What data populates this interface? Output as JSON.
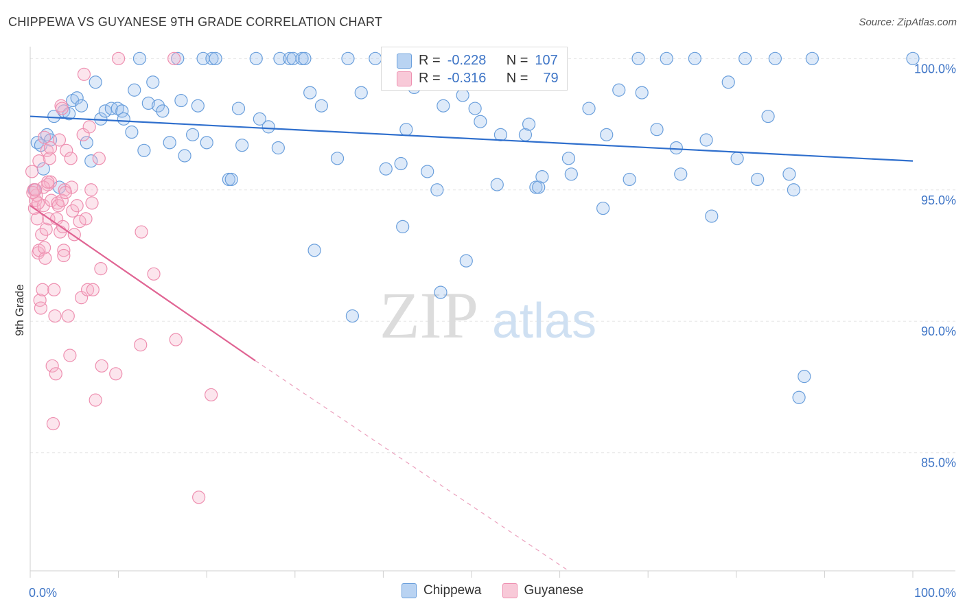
{
  "title": "CHIPPEWA VS GUYANESE 9TH GRADE CORRELATION CHART",
  "source": "Source: ZipAtlas.com",
  "watermark": {
    "zip": "ZIP",
    "atlas": "atlas"
  },
  "legend": {
    "r_label": "R =",
    "n_label": "N =",
    "rows": [
      {
        "name": "Chippewa",
        "r": "-0.228",
        "n": "107",
        "color": "#6a9fdc"
      },
      {
        "name": "Guyanese",
        "r": "-0.316",
        "n": "79",
        "color": "#ee8fb0"
      }
    ]
  },
  "chart_data": {
    "type": "scatter",
    "title": "CHIPPEWA VS GUYANESE 9TH GRADE CORRELATION CHART",
    "xlabel": "",
    "ylabel": "9th Grade",
    "xlim": [
      0,
      100
    ],
    "ylim": [
      80.5,
      100.4
    ],
    "x_tick_labels": [
      "0.0%",
      "100.0%"
    ],
    "y_ticks": [
      85,
      90,
      95,
      100
    ],
    "y_tick_labels": [
      "85.0%",
      "90.0%",
      "95.0%",
      "100.0%"
    ],
    "grid": true,
    "series": [
      {
        "name": "Chippewa",
        "color": "#6a9fdc",
        "trend": {
          "x0": 0,
          "y0": 97.8,
          "x1": 100,
          "y1": 96.1
        },
        "points": [
          [
            0.5,
            95.0
          ],
          [
            0.8,
            96.8
          ],
          [
            1.2,
            96.7
          ],
          [
            1.5,
            95.8
          ],
          [
            1.9,
            97.1
          ],
          [
            2.3,
            96.9
          ],
          [
            2.7,
            97.8
          ],
          [
            3.3,
            95.1
          ],
          [
            3.8,
            98.0
          ],
          [
            4.4,
            97.9
          ],
          [
            4.8,
            98.4
          ],
          [
            5.3,
            98.5
          ],
          [
            5.8,
            98.2
          ],
          [
            6.4,
            96.8
          ],
          [
            6.9,
            96.1
          ],
          [
            7.4,
            99.1
          ],
          [
            8.0,
            97.7
          ],
          [
            8.5,
            98.0
          ],
          [
            9.2,
            98.1
          ],
          [
            9.9,
            98.1
          ],
          [
            10.4,
            98.0
          ],
          [
            10.6,
            97.7
          ],
          [
            11.5,
            97.2
          ],
          [
            11.8,
            98.8
          ],
          [
            12.4,
            100.0
          ],
          [
            12.9,
            96.5
          ],
          [
            13.4,
            98.3
          ],
          [
            13.9,
            99.1
          ],
          [
            14.5,
            98.2
          ],
          [
            15.0,
            98.0
          ],
          [
            15.8,
            96.8
          ],
          [
            16.7,
            100.0
          ],
          [
            17.1,
            98.4
          ],
          [
            17.5,
            96.3
          ],
          [
            18.4,
            97.1
          ],
          [
            19.0,
            98.2
          ],
          [
            19.6,
            100.0
          ],
          [
            20.0,
            96.8
          ],
          [
            20.6,
            100.0
          ],
          [
            21.0,
            100.0
          ],
          [
            22.5,
            95.4
          ],
          [
            22.8,
            95.4
          ],
          [
            23.6,
            98.1
          ],
          [
            24.0,
            96.7
          ],
          [
            25.6,
            100.0
          ],
          [
            26.0,
            97.7
          ],
          [
            27.0,
            97.4
          ],
          [
            28.1,
            96.6
          ],
          [
            28.3,
            100.0
          ],
          [
            29.4,
            100.0
          ],
          [
            29.8,
            100.0
          ],
          [
            30.8,
            100.0
          ],
          [
            31.1,
            100.0
          ],
          [
            31.7,
            98.7
          ],
          [
            32.2,
            92.7
          ],
          [
            33.0,
            98.2
          ],
          [
            34.8,
            96.2
          ],
          [
            36.0,
            100.0
          ],
          [
            37.5,
            98.7
          ],
          [
            39.1,
            100.0
          ],
          [
            40.3,
            95.8
          ],
          [
            42.0,
            96.0
          ],
          [
            42.2,
            93.6
          ],
          [
            42.6,
            97.3
          ],
          [
            43.5,
            98.9
          ],
          [
            45.0,
            95.7
          ],
          [
            46.1,
            95.0
          ],
          [
            46.5,
            91.1
          ],
          [
            46.8,
            98.2
          ],
          [
            47.5,
            100.0
          ],
          [
            49.0,
            98.6
          ],
          [
            49.4,
            92.3
          ],
          [
            50.4,
            98.1
          ],
          [
            51.0,
            97.6
          ],
          [
            52.9,
            95.2
          ],
          [
            53.3,
            97.1
          ],
          [
            56.1,
            97.1
          ],
          [
            56.5,
            97.5
          ],
          [
            57.3,
            95.1
          ],
          [
            57.6,
            95.1
          ],
          [
            58.0,
            95.5
          ],
          [
            59.8,
            100.0
          ],
          [
            61.0,
            96.2
          ],
          [
            61.3,
            95.6
          ],
          [
            63.3,
            98.1
          ],
          [
            64.9,
            94.3
          ],
          [
            65.3,
            97.1
          ],
          [
            66.7,
            98.8
          ],
          [
            67.9,
            95.4
          ],
          [
            68.9,
            100.0
          ],
          [
            69.3,
            98.7
          ],
          [
            71.0,
            97.3
          ],
          [
            72.1,
            100.0
          ],
          [
            73.2,
            96.6
          ],
          [
            73.7,
            95.6
          ],
          [
            75.3,
            100.0
          ],
          [
            76.6,
            96.9
          ],
          [
            77.2,
            94.0
          ],
          [
            79.1,
            99.1
          ],
          [
            80.1,
            96.2
          ],
          [
            81.0,
            100.0
          ],
          [
            82.4,
            95.4
          ],
          [
            83.6,
            97.8
          ],
          [
            84.4,
            100.0
          ],
          [
            86.0,
            95.6
          ],
          [
            86.5,
            95.0
          ],
          [
            87.1,
            87.1
          ],
          [
            87.7,
            87.9
          ],
          [
            88.6,
            100.0
          ],
          [
            100.0,
            100.0
          ],
          [
            36.5,
            90.2
          ]
        ]
      },
      {
        "name": "Guyanese",
        "color": "#ee8fb0",
        "trend": {
          "x0": 0,
          "y0": 94.4,
          "x1": 25.5,
          "y1": 88.5,
          "dash_to_x": 61,
          "dash_to_y": 80.5
        },
        "points": [
          [
            0.2,
            95.7
          ],
          [
            0.4,
            95.0
          ],
          [
            0.5,
            94.3
          ],
          [
            0.6,
            94.6
          ],
          [
            0.7,
            94.8
          ],
          [
            0.8,
            93.9
          ],
          [
            0.9,
            92.6
          ],
          [
            1.0,
            92.7
          ],
          [
            1.1,
            90.8
          ],
          [
            1.2,
            90.5
          ],
          [
            1.3,
            93.3
          ],
          [
            1.4,
            91.2
          ],
          [
            1.5,
            94.4
          ],
          [
            1.6,
            92.8
          ],
          [
            1.7,
            92.4
          ],
          [
            1.8,
            93.5
          ],
          [
            1.9,
            96.5
          ],
          [
            2.0,
            95.2
          ],
          [
            2.1,
            93.9
          ],
          [
            2.2,
            96.2
          ],
          [
            2.3,
            95.3
          ],
          [
            2.4,
            94.6
          ],
          [
            2.5,
            88.3
          ],
          [
            2.6,
            86.1
          ],
          [
            2.7,
            91.2
          ],
          [
            2.8,
            90.2
          ],
          [
            2.9,
            88.0
          ],
          [
            3.0,
            93.9
          ],
          [
            3.1,
            94.5
          ],
          [
            3.2,
            94.4
          ],
          [
            3.3,
            96.9
          ],
          [
            3.4,
            93.4
          ],
          [
            3.5,
            98.2
          ],
          [
            3.6,
            98.1
          ],
          [
            3.7,
            93.6
          ],
          [
            3.8,
            92.7
          ],
          [
            3.9,
            95.0
          ],
          [
            4.1,
            96.5
          ],
          [
            4.3,
            90.2
          ],
          [
            4.5,
            88.7
          ],
          [
            4.6,
            96.2
          ],
          [
            4.7,
            95.1
          ],
          [
            4.8,
            94.2
          ],
          [
            5.0,
            93.3
          ],
          [
            5.3,
            94.4
          ],
          [
            5.6,
            93.8
          ],
          [
            5.8,
            90.9
          ],
          [
            6.0,
            97.1
          ],
          [
            6.1,
            99.4
          ],
          [
            6.3,
            93.9
          ],
          [
            6.5,
            91.2
          ],
          [
            6.7,
            97.4
          ],
          [
            6.9,
            95.0
          ],
          [
            7.0,
            94.5
          ],
          [
            7.1,
            91.2
          ],
          [
            7.4,
            87.0
          ],
          [
            7.8,
            96.2
          ],
          [
            8.0,
            92.0
          ],
          [
            8.1,
            88.3
          ],
          [
            9.7,
            88.0
          ],
          [
            10.0,
            100.0
          ],
          [
            12.5,
            89.1
          ],
          [
            12.6,
            93.4
          ],
          [
            14.0,
            91.8
          ],
          [
            16.3,
            100.0
          ],
          [
            16.5,
            89.3
          ],
          [
            19.1,
            83.3
          ],
          [
            20.5,
            87.2
          ],
          [
            1.0,
            96.1
          ],
          [
            0.3,
            94.9
          ],
          [
            1.5,
            95.1
          ],
          [
            2.0,
            95.3
          ],
          [
            3.6,
            94.6
          ],
          [
            4.0,
            94.9
          ],
          [
            0.9,
            94.5
          ],
          [
            1.6,
            97.0
          ],
          [
            0.6,
            95.0
          ],
          [
            2.3,
            96.6
          ],
          [
            3.8,
            92.5
          ]
        ]
      }
    ]
  }
}
